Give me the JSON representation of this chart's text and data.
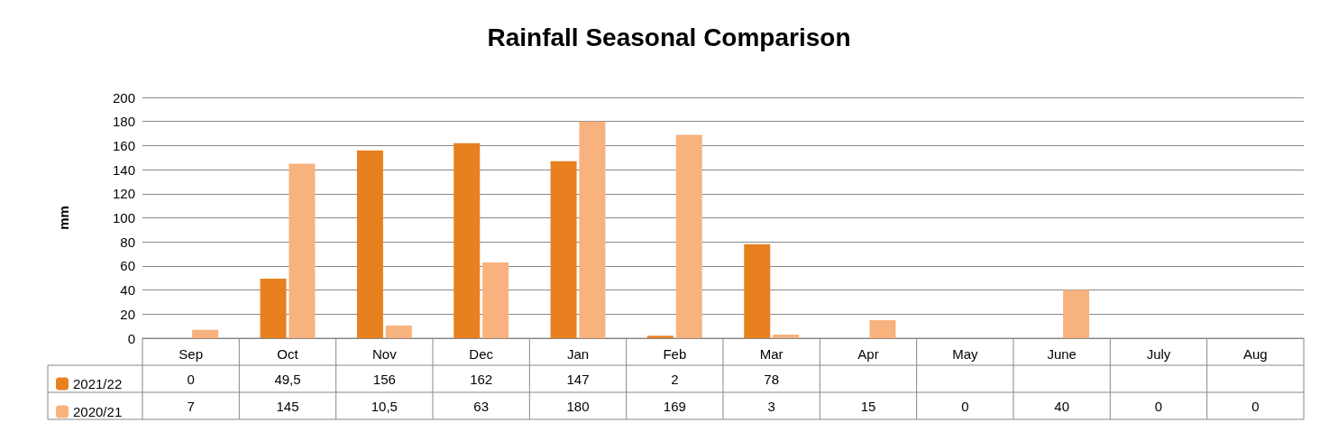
{
  "chart_data": {
    "type": "bar",
    "title": "Rainfall Seasonal Comparison",
    "ylabel": "mm",
    "categories": [
      "Sep",
      "Oct",
      "Nov",
      "Dec",
      "Jan",
      "Feb",
      "Mar",
      "Apr",
      "May",
      "June",
      "July",
      "Aug"
    ],
    "series": [
      {
        "name": "2021/22",
        "color": "#e8801f",
        "values": [
          0,
          49.5,
          156,
          162,
          147,
          2,
          78,
          null,
          null,
          null,
          null,
          null
        ],
        "value_labels": [
          "0",
          "49,5",
          "156",
          "162",
          "147",
          "2",
          "78",
          null,
          null,
          null,
          null,
          null
        ]
      },
      {
        "name": "2020/21",
        "color": "#f7b27e",
        "values": [
          7,
          145,
          10.5,
          63,
          180,
          169,
          3,
          15,
          0,
          40,
          0,
          0
        ],
        "value_labels": [
          "7",
          "145",
          "10,5",
          "63",
          "180",
          "169",
          "3",
          "15",
          "0",
          "40",
          "0",
          "0"
        ]
      }
    ],
    "ylim": [
      0,
      200
    ],
    "yticks": [
      0,
      20,
      40,
      60,
      80,
      100,
      120,
      140,
      160,
      180,
      200
    ],
    "grid": "y",
    "legend": "bottom left"
  }
}
